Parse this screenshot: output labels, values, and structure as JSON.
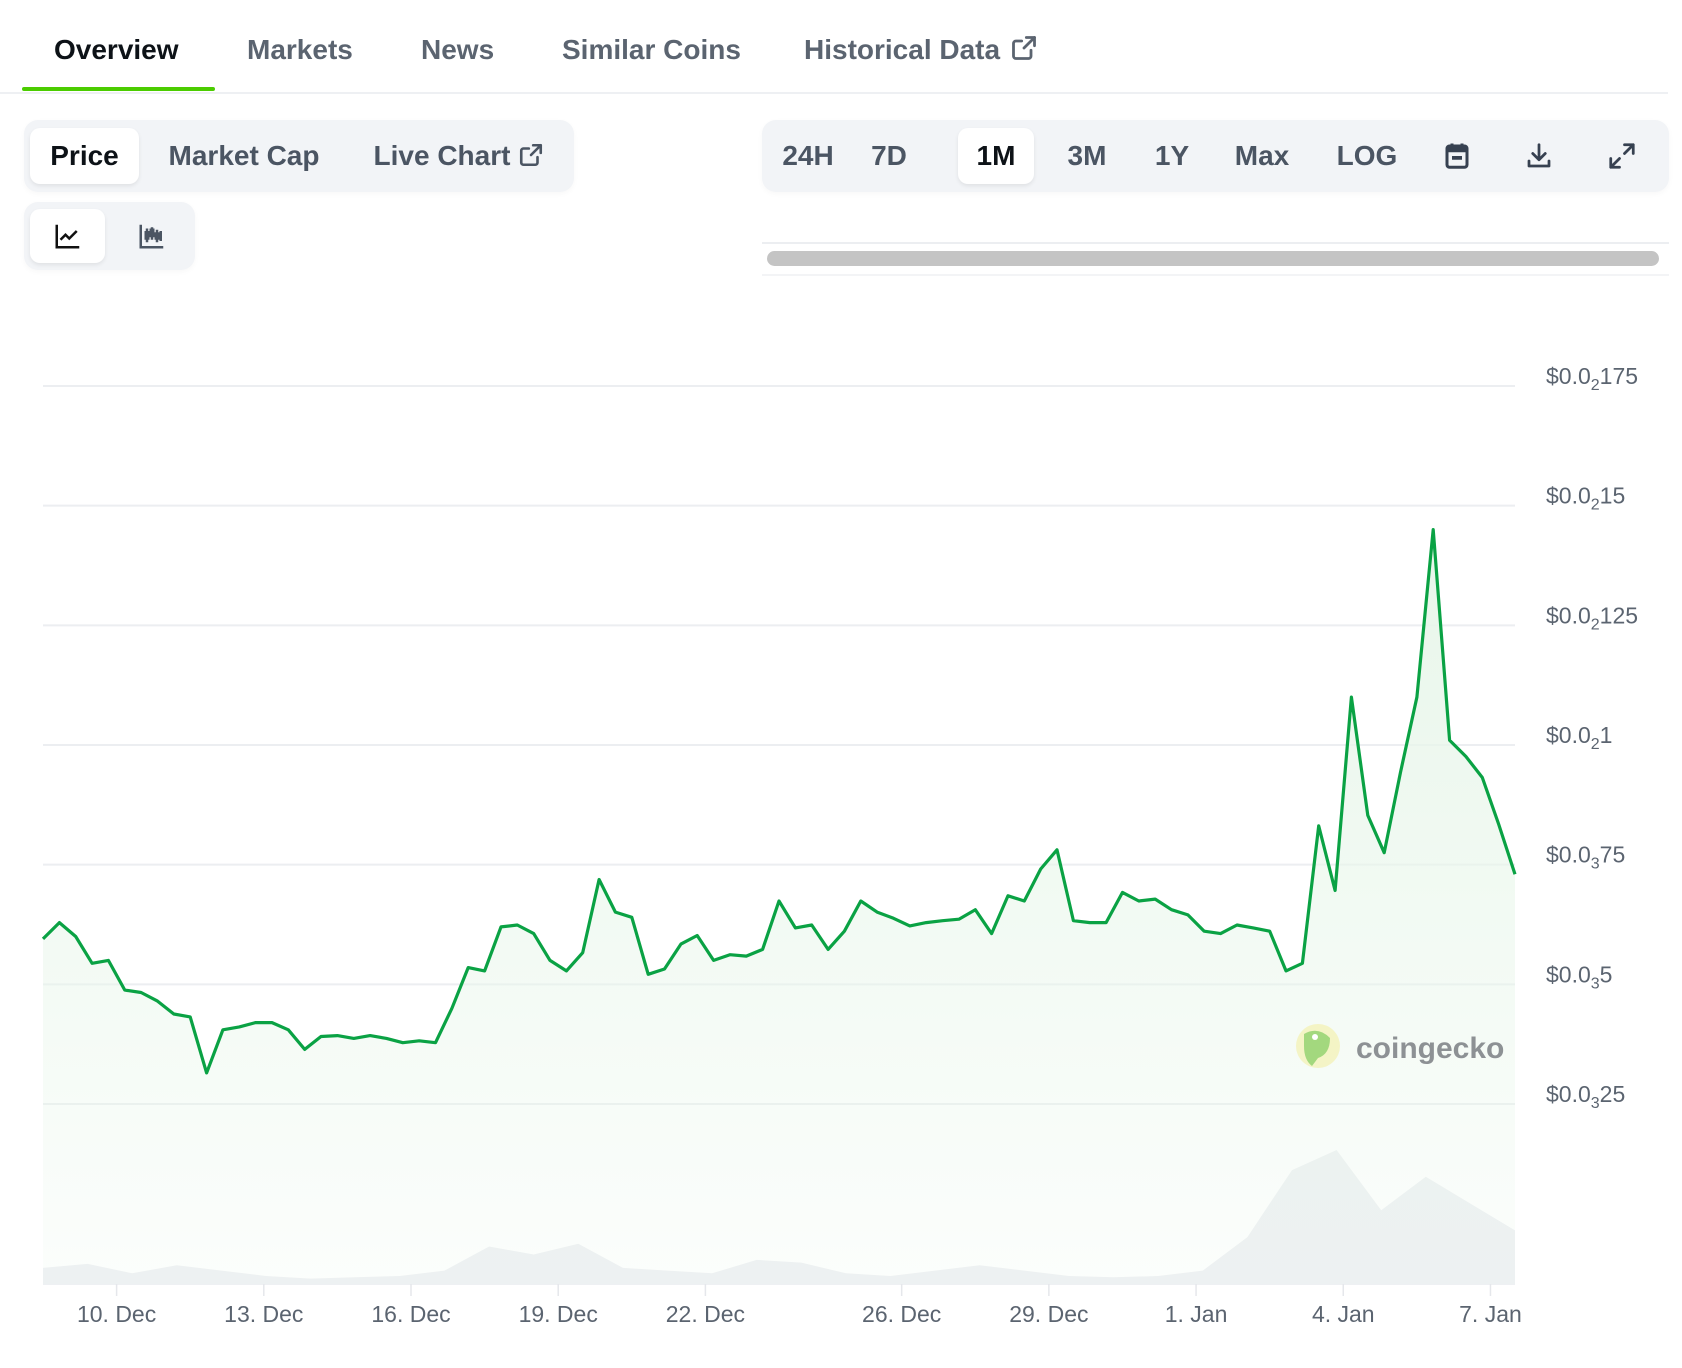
{
  "tabs": [
    {
      "label": "Overview",
      "active": true
    },
    {
      "label": "Markets"
    },
    {
      "label": "News"
    },
    {
      "label": "Similar Coins"
    },
    {
      "label": "Historical Data",
      "icon": "external-link-icon"
    }
  ],
  "data_type_tabs": [
    {
      "label": "Price",
      "active": true
    },
    {
      "label": "Market Cap"
    },
    {
      "label": "Live Chart",
      "icon": "external-link-icon"
    }
  ],
  "chart_type_buttons": [
    {
      "icon": "line-chart-icon",
      "active": true
    },
    {
      "icon": "candlestick-chart-icon"
    }
  ],
  "range_buttons": [
    {
      "label": "24H"
    },
    {
      "label": "7D"
    },
    {
      "label": "1M",
      "active": true
    },
    {
      "label": "3M"
    },
    {
      "label": "1Y"
    },
    {
      "label": "Max"
    },
    {
      "label": "LOG"
    }
  ],
  "toolbar_icons": [
    "calendar-icon",
    "download-icon",
    "expand-icon"
  ],
  "watermark": "coingecko",
  "colors": {
    "accent": "#4bcc00",
    "line": "#0aa244",
    "fill": "#e8f6ea",
    "volume": "#eef0f3"
  },
  "chart_data": {
    "type": "area",
    "x_start": "Dec 8 12:00",
    "interval_hours": 8,
    "yticks": [
      {
        "value": 0.00175,
        "prefix": "$0.0",
        "sub": "2",
        "suffix": "175"
      },
      {
        "value": 0.0015,
        "prefix": "$0.0",
        "sub": "2",
        "suffix": "15"
      },
      {
        "value": 0.00125,
        "prefix": "$0.0",
        "sub": "2",
        "suffix": "125"
      },
      {
        "value": 0.001,
        "prefix": "$0.0",
        "sub": "2",
        "suffix": "1"
      },
      {
        "value": 0.00075,
        "prefix": "$0.0",
        "sub": "3",
        "suffix": "75"
      },
      {
        "value": 0.0005,
        "prefix": "$0.0",
        "sub": "3",
        "suffix": "5"
      },
      {
        "value": 0.00025,
        "prefix": "$0.0",
        "sub": "3",
        "suffix": "25"
      }
    ],
    "ylim": [
      0.00025,
      0.00175
    ],
    "grid": true,
    "xticks": [
      {
        "label": "10. Dec",
        "date": "Dec 10"
      },
      {
        "label": "13. Dec",
        "date": "Dec 13"
      },
      {
        "label": "16. Dec",
        "date": "Dec 16"
      },
      {
        "label": "19. Dec",
        "date": "Dec 19"
      },
      {
        "label": "22. Dec",
        "date": "Dec 22"
      },
      {
        "label": "26. Dec",
        "date": "Dec 26"
      },
      {
        "label": "29. Dec",
        "date": "Dec 29"
      },
      {
        "label": "1. Jan",
        "date": "Jan 1"
      },
      {
        "label": "4. Jan",
        "date": "Jan 4"
      },
      {
        "label": "7. Jan",
        "date": "Jan 7"
      }
    ],
    "price": [
      0.000595,
      0.000629,
      0.0006,
      0.000544,
      0.00055,
      0.000488,
      0.000483,
      0.000465,
      0.000438,
      0.000432,
      0.000315,
      0.000405,
      0.000411,
      0.00042,
      0.00042,
      0.000405,
      0.000364,
      0.000391,
      0.000393,
      0.000387,
      0.000393,
      0.000387,
      0.000378,
      0.000382,
      0.000378,
      0.00045,
      0.000535,
      0.000528,
      0.00062,
      0.000624,
      0.000606,
      0.00055,
      0.000528,
      0.000566,
      0.000719,
      0.000651,
      0.00064,
      0.000521,
      0.000532,
      0.000584,
      0.000602,
      0.00055,
      0.000562,
      0.000559,
      0.000573,
      0.000674,
      0.000618,
      0.000624,
      0.000573,
      0.000611,
      0.000674,
      0.000651,
      0.000638,
      0.000622,
      0.000629,
      0.000633,
      0.000636,
      0.000656,
      0.000606,
      0.000685,
      0.000674,
      0.000741,
      0.000781,
      0.000633,
      0.000629,
      0.000629,
      0.000692,
      0.000674,
      0.000678,
      0.000656,
      0.000645,
      0.000611,
      0.000606,
      0.000624,
      0.000618,
      0.000611,
      0.000528,
      0.000544,
      0.000831,
      0.000696,
      0.0011,
      0.000853,
      0.000775,
      0.000943,
      0.0011,
      0.00145,
      0.00101,
      0.000976,
      0.000932,
      0.000835,
      0.00073
    ],
    "volume_relative": [
      0.12,
      0.15,
      0.08,
      0.14,
      0.1,
      0.06,
      0.04,
      0.05,
      0.06,
      0.1,
      0.28,
      0.22,
      0.3,
      0.12,
      0.1,
      0.08,
      0.18,
      0.16,
      0.08,
      0.06,
      0.1,
      0.14,
      0.1,
      0.06,
      0.05,
      0.06,
      0.1,
      0.35,
      0.85,
      1.0,
      0.55,
      0.8,
      0.6,
      0.4
    ]
  }
}
